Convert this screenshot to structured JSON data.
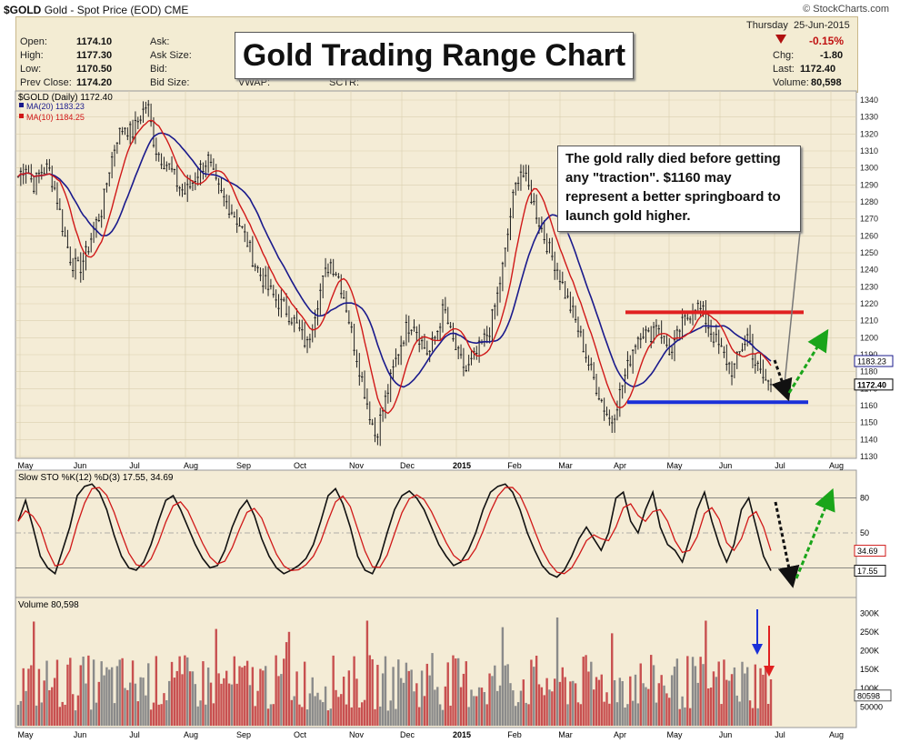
{
  "header": {
    "symbol": "$GOLD",
    "description": "Gold - Spot Price (EOD)",
    "exchange": "CME",
    "logo": "© StockCharts.com",
    "date_day": "Thursday",
    "date": "25-Jun-2015",
    "change_pct": "-0.15%"
  },
  "quote": {
    "open_label": "Open:",
    "open": "1174.10",
    "high_label": "High:",
    "high": "1177.30",
    "low_label": "Low:",
    "low": "1170.50",
    "prev_label": "Prev Close:",
    "prev": "1174.20",
    "ask_label": "Ask:",
    "asksize_label": "Ask Size:",
    "bid_label": "Bid:",
    "bidsize_label": "Bid Size:",
    "vwap_label": "VWAP:",
    "sctr_label": "SCTR:",
    "chg_label": "Chg:",
    "chg": "-1.80",
    "last_label": "Last:",
    "last": "1172.40",
    "volume_label": "Volume:",
    "volume": "80,598"
  },
  "annotations": {
    "title": "Gold Trading Range Chart",
    "comment": "The gold rally died before getting any \"traction\". $1160 may represent a better springboard to launch gold higher."
  },
  "colors": {
    "panel_bg": "#f4ecd6",
    "ma20": "#1a1a8c",
    "ma10": "#d01818",
    "resistance": "#e02020",
    "support": "#1a30d8",
    "arrow_down": "#111111",
    "arrow_up": "#1aa51a",
    "volume_up": "#8a8a8a",
    "volume_down": "#c85050"
  },
  "chart_data": [
    {
      "type": "candlestick",
      "title": "$GOLD (Daily) 1172.40",
      "series": [
        {
          "name": "MA(20) 1183.23",
          "last": 1183.23
        },
        {
          "name": "MA(10) 1184.25",
          "last": 1184.25
        }
      ],
      "last_price": "1172.40",
      "last_price_value": 1172.4,
      "ma20_tag": "1183.23",
      "ylim": [
        1130,
        1340
      ],
      "yticks": [
        1130,
        1140,
        1150,
        1160,
        1170,
        1180,
        1190,
        1200,
        1210,
        1220,
        1230,
        1240,
        1250,
        1260,
        1270,
        1280,
        1290,
        1300,
        1310,
        1320,
        1330,
        1340
      ],
      "x_labels": [
        "May",
        "Jun",
        "Jul",
        "Aug",
        "Sep",
        "Oct",
        "Nov",
        "Dec",
        "2015",
        "Feb",
        "Mar",
        "Apr",
        "May",
        "Jun",
        "Jul",
        "Aug"
      ],
      "approx_closes": [
        1295,
        1302,
        1290,
        1298,
        1300,
        1285,
        1262,
        1245,
        1240,
        1250,
        1265,
        1275,
        1300,
        1318,
        1325,
        1320,
        1330,
        1338,
        1312,
        1305,
        1300,
        1290,
        1285,
        1292,
        1300,
        1305,
        1290,
        1282,
        1276,
        1268,
        1258,
        1245,
        1236,
        1228,
        1222,
        1218,
        1212,
        1204,
        1195,
        1215,
        1232,
        1245,
        1238,
        1222,
        1200,
        1180,
        1160,
        1142,
        1158,
        1175,
        1192,
        1205,
        1210,
        1198,
        1190,
        1202,
        1218,
        1200,
        1188,
        1180,
        1188,
        1196,
        1205,
        1224,
        1248,
        1280,
        1300,
        1290,
        1276,
        1262,
        1250,
        1240,
        1225,
        1214,
        1200,
        1185,
        1172,
        1160,
        1150,
        1165,
        1180,
        1196,
        1205,
        1200,
        1210,
        1198,
        1190,
        1205,
        1212,
        1220,
        1215,
        1205,
        1196,
        1188,
        1180,
        1192,
        1202,
        1184,
        1176,
        1172
      ],
      "resistance": 1215,
      "support": 1162,
      "grid": true
    },
    {
      "type": "line",
      "title": "Slow STO %K(12) %D(3) 17.55, 34.69",
      "series": [
        {
          "name": "%K(12)",
          "last": 17.55
        },
        {
          "name": "%D(3)",
          "last": 34.69
        }
      ],
      "tag_k": "17.55",
      "tag_d": "34.69",
      "ylim": [
        0,
        100
      ],
      "yticks": [
        50,
        80
      ],
      "levels": [
        20,
        50,
        80
      ],
      "k_values": [
        60,
        78,
        55,
        30,
        20,
        15,
        35,
        55,
        82,
        90,
        92,
        85,
        70,
        48,
        30,
        20,
        18,
        25,
        40,
        60,
        78,
        82,
        70,
        55,
        40,
        28,
        20,
        22,
        35,
        55,
        70,
        78,
        65,
        45,
        30,
        20,
        15,
        18,
        22,
        28,
        40,
        60,
        82,
        88,
        75,
        55,
        30,
        18,
        15,
        28,
        50,
        70,
        82,
        86,
        80,
        70,
        55,
        40,
        30,
        22,
        25,
        35,
        50,
        70,
        85,
        90,
        92,
        85,
        70,
        50,
        35,
        22,
        15,
        12,
        18,
        30,
        45,
        55,
        45,
        35,
        50,
        80,
        85,
        60,
        50,
        70,
        85,
        55,
        40,
        35,
        25,
        45,
        70,
        85,
        60,
        40,
        25,
        40,
        70,
        80,
        55,
        30,
        18
      ]
    },
    {
      "type": "bar",
      "title": "Volume 80,598",
      "last_volume": 80598,
      "last_volume_tag": "80598",
      "ylim": [
        0,
        330000
      ],
      "ytick_values": [
        50000,
        100000,
        150000,
        200000,
        250000,
        300000
      ],
      "ytick_labels": [
        "50000",
        "100K",
        "150K",
        "200K",
        "250K",
        "300K"
      ]
    }
  ]
}
